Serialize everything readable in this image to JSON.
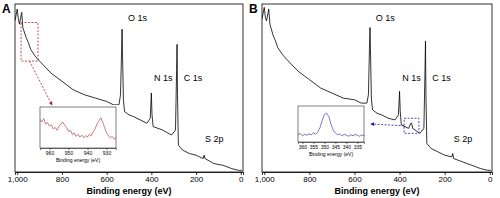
{
  "chart_data": [
    {
      "type": "line",
      "title": "A",
      "x_label": "Binding energy (eV)",
      "xlim": [
        1010,
        -10
      ],
      "ylim": [
        0,
        100
      ],
      "tick_labels": "x",
      "xticks": [
        {
          "value": 1000,
          "label": "1,000"
        },
        800,
        600,
        400,
        200,
        0
      ],
      "color": "#000000",
      "x": [
        1010,
        1000,
        995,
        990,
        980,
        975,
        960,
        950,
        940,
        920,
        900,
        850,
        800,
        750,
        700,
        650,
        600,
        570,
        545,
        538,
        533,
        531,
        529,
        525,
        520,
        500,
        480,
        450,
        420,
        405,
        400,
        397,
        392,
        350,
        310,
        292,
        287,
        285,
        283,
        279,
        260,
        230,
        200,
        168,
        164,
        160,
        120,
        80,
        40,
        10,
        -5
      ],
      "values": [
        90,
        97,
        91,
        88,
        95,
        86,
        80,
        77,
        73,
        69,
        66,
        59,
        54,
        49,
        46,
        44,
        42,
        40,
        40,
        46,
        73,
        85,
        70,
        43,
        36,
        34,
        33,
        31,
        29,
        32,
        47,
        34,
        27,
        25,
        22,
        25,
        61,
        76,
        46,
        16,
        13,
        11,
        10,
        8,
        10,
        8,
        5,
        4,
        2,
        1,
        1
      ],
      "annotations": [
        {
          "text": "O 1s",
          "x": 505,
          "y": 90
        },
        {
          "text": "N 1s",
          "x": 388,
          "y": 54
        },
        {
          "text": "C 1s",
          "x": 255,
          "y": 54
        },
        {
          "text": "S 2p",
          "x": 160,
          "y": 18
        }
      ],
      "inset": {
        "type": "line",
        "x_label": "Binding energy (eV)",
        "xlim": [
          965,
          925
        ],
        "ylim": [
          20,
          80
        ],
        "tick_labels": "x",
        "xticks": [
          960,
          950,
          940,
          930
        ],
        "color": "#b22222",
        "x": [
          965,
          964,
          963,
          962,
          961,
          960,
          959,
          958,
          957,
          956,
          955,
          954,
          953,
          952,
          951,
          950,
          949,
          948,
          947,
          946,
          945,
          944,
          943,
          942,
          941,
          940,
          939,
          938,
          937,
          936,
          935,
          934,
          933,
          932,
          931,
          930,
          929,
          928,
          927,
          926,
          925
        ],
        "values": [
          62,
          58,
          63,
          55,
          57,
          52,
          54,
          48,
          50,
          46,
          52,
          55,
          58,
          53,
          50,
          44,
          46,
          40,
          42,
          37,
          40,
          36,
          39,
          35,
          38,
          36,
          40,
          38,
          44,
          48,
          55,
          60,
          64,
          58,
          50,
          42,
          38,
          35,
          37,
          33,
          35
        ]
      }
    },
    {
      "type": "line",
      "title": "B",
      "x_label": "Binding energy (eV)",
      "xlim": [
        1010,
        -10
      ],
      "ylim": [
        0,
        100
      ],
      "tick_labels": "x",
      "xticks": [
        {
          "value": 1000,
          "label": "1,000"
        },
        800,
        600,
        400,
        200,
        0
      ],
      "color": "#000000",
      "x": [
        1010,
        1000,
        995,
        990,
        980,
        975,
        960,
        950,
        940,
        920,
        900,
        850,
        800,
        750,
        700,
        650,
        600,
        570,
        545,
        538,
        533,
        531,
        529,
        525,
        520,
        500,
        480,
        450,
        420,
        405,
        400,
        397,
        392,
        360,
        350,
        346,
        342,
        310,
        292,
        287,
        285,
        283,
        279,
        260,
        230,
        200,
        168,
        164,
        160,
        120,
        80,
        40,
        10,
        -5
      ],
      "values": [
        91,
        98,
        92,
        90,
        97,
        88,
        81,
        78,
        74,
        70,
        67,
        60,
        55,
        50,
        47,
        44,
        43,
        41,
        41,
        46,
        76,
        86,
        73,
        44,
        37,
        35,
        34,
        32,
        31,
        34,
        48,
        36,
        28,
        26,
        29,
        29,
        26,
        23,
        26,
        61,
        78,
        46,
        17,
        14,
        12,
        10,
        9,
        11,
        8,
        6,
        4,
        2,
        1,
        1
      ],
      "annotations": [
        {
          "text": "O 1s",
          "x": 505,
          "y": 90
        },
        {
          "text": "N 1s",
          "x": 388,
          "y": 54
        },
        {
          "text": "C 1s",
          "x": 255,
          "y": 54
        },
        {
          "text": "S 2p",
          "x": 160,
          "y": 18
        }
      ],
      "inset": {
        "type": "line",
        "x_label": "Binding energy (eV)",
        "xlim": [
          362,
          332
        ],
        "ylim": [
          15,
          90
        ],
        "tick_labels": "x",
        "xticks": [
          360,
          355,
          350,
          345,
          340,
          335
        ],
        "color": "#1f1fa0",
        "x": [
          362,
          361,
          360,
          359,
          358,
          357,
          356,
          355,
          354,
          353,
          352,
          351,
          350,
          349,
          348,
          347,
          346,
          345,
          344,
          343,
          342,
          341,
          340,
          339,
          338,
          337,
          336,
          335,
          334,
          333,
          332
        ],
        "values": [
          30,
          33,
          28,
          31,
          29,
          32,
          30,
          34,
          31,
          36,
          45,
          60,
          72,
          75,
          68,
          52,
          40,
          34,
          30,
          32,
          28,
          31,
          29,
          27,
          30,
          28,
          31,
          29,
          27,
          30,
          28
        ]
      }
    }
  ]
}
